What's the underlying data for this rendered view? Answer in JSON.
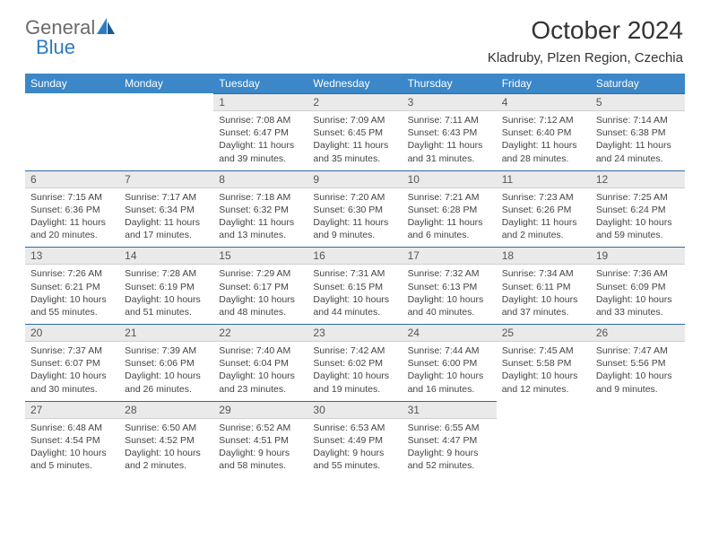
{
  "logo": {
    "part1": "General",
    "part2": "Blue"
  },
  "title": "October 2024",
  "subtitle": "Kladruby, Plzen Region, Czechia",
  "colors": {
    "header_bg": "#3b87c8",
    "header_text": "#ffffff",
    "daynum_bg": "#eaeaea",
    "border_top": "#2d6aa3",
    "logo_gray": "#6a6a6a",
    "logo_blue": "#2d7bc0"
  },
  "weekdays": [
    "Sunday",
    "Monday",
    "Tuesday",
    "Wednesday",
    "Thursday",
    "Friday",
    "Saturday"
  ],
  "weeks": [
    [
      null,
      null,
      {
        "num": "1",
        "sunrise": "Sunrise: 7:08 AM",
        "sunset": "Sunset: 6:47 PM",
        "daylight": "Daylight: 11 hours and 39 minutes."
      },
      {
        "num": "2",
        "sunrise": "Sunrise: 7:09 AM",
        "sunset": "Sunset: 6:45 PM",
        "daylight": "Daylight: 11 hours and 35 minutes."
      },
      {
        "num": "3",
        "sunrise": "Sunrise: 7:11 AM",
        "sunset": "Sunset: 6:43 PM",
        "daylight": "Daylight: 11 hours and 31 minutes."
      },
      {
        "num": "4",
        "sunrise": "Sunrise: 7:12 AM",
        "sunset": "Sunset: 6:40 PM",
        "daylight": "Daylight: 11 hours and 28 minutes."
      },
      {
        "num": "5",
        "sunrise": "Sunrise: 7:14 AM",
        "sunset": "Sunset: 6:38 PM",
        "daylight": "Daylight: 11 hours and 24 minutes."
      }
    ],
    [
      {
        "num": "6",
        "sunrise": "Sunrise: 7:15 AM",
        "sunset": "Sunset: 6:36 PM",
        "daylight": "Daylight: 11 hours and 20 minutes."
      },
      {
        "num": "7",
        "sunrise": "Sunrise: 7:17 AM",
        "sunset": "Sunset: 6:34 PM",
        "daylight": "Daylight: 11 hours and 17 minutes."
      },
      {
        "num": "8",
        "sunrise": "Sunrise: 7:18 AM",
        "sunset": "Sunset: 6:32 PM",
        "daylight": "Daylight: 11 hours and 13 minutes."
      },
      {
        "num": "9",
        "sunrise": "Sunrise: 7:20 AM",
        "sunset": "Sunset: 6:30 PM",
        "daylight": "Daylight: 11 hours and 9 minutes."
      },
      {
        "num": "10",
        "sunrise": "Sunrise: 7:21 AM",
        "sunset": "Sunset: 6:28 PM",
        "daylight": "Daylight: 11 hours and 6 minutes."
      },
      {
        "num": "11",
        "sunrise": "Sunrise: 7:23 AM",
        "sunset": "Sunset: 6:26 PM",
        "daylight": "Daylight: 11 hours and 2 minutes."
      },
      {
        "num": "12",
        "sunrise": "Sunrise: 7:25 AM",
        "sunset": "Sunset: 6:24 PM",
        "daylight": "Daylight: 10 hours and 59 minutes."
      }
    ],
    [
      {
        "num": "13",
        "sunrise": "Sunrise: 7:26 AM",
        "sunset": "Sunset: 6:21 PM",
        "daylight": "Daylight: 10 hours and 55 minutes."
      },
      {
        "num": "14",
        "sunrise": "Sunrise: 7:28 AM",
        "sunset": "Sunset: 6:19 PM",
        "daylight": "Daylight: 10 hours and 51 minutes."
      },
      {
        "num": "15",
        "sunrise": "Sunrise: 7:29 AM",
        "sunset": "Sunset: 6:17 PM",
        "daylight": "Daylight: 10 hours and 48 minutes."
      },
      {
        "num": "16",
        "sunrise": "Sunrise: 7:31 AM",
        "sunset": "Sunset: 6:15 PM",
        "daylight": "Daylight: 10 hours and 44 minutes."
      },
      {
        "num": "17",
        "sunrise": "Sunrise: 7:32 AM",
        "sunset": "Sunset: 6:13 PM",
        "daylight": "Daylight: 10 hours and 40 minutes."
      },
      {
        "num": "18",
        "sunrise": "Sunrise: 7:34 AM",
        "sunset": "Sunset: 6:11 PM",
        "daylight": "Daylight: 10 hours and 37 minutes."
      },
      {
        "num": "19",
        "sunrise": "Sunrise: 7:36 AM",
        "sunset": "Sunset: 6:09 PM",
        "daylight": "Daylight: 10 hours and 33 minutes."
      }
    ],
    [
      {
        "num": "20",
        "sunrise": "Sunrise: 7:37 AM",
        "sunset": "Sunset: 6:07 PM",
        "daylight": "Daylight: 10 hours and 30 minutes."
      },
      {
        "num": "21",
        "sunrise": "Sunrise: 7:39 AM",
        "sunset": "Sunset: 6:06 PM",
        "daylight": "Daylight: 10 hours and 26 minutes."
      },
      {
        "num": "22",
        "sunrise": "Sunrise: 7:40 AM",
        "sunset": "Sunset: 6:04 PM",
        "daylight": "Daylight: 10 hours and 23 minutes."
      },
      {
        "num": "23",
        "sunrise": "Sunrise: 7:42 AM",
        "sunset": "Sunset: 6:02 PM",
        "daylight": "Daylight: 10 hours and 19 minutes."
      },
      {
        "num": "24",
        "sunrise": "Sunrise: 7:44 AM",
        "sunset": "Sunset: 6:00 PM",
        "daylight": "Daylight: 10 hours and 16 minutes."
      },
      {
        "num": "25",
        "sunrise": "Sunrise: 7:45 AM",
        "sunset": "Sunset: 5:58 PM",
        "daylight": "Daylight: 10 hours and 12 minutes."
      },
      {
        "num": "26",
        "sunrise": "Sunrise: 7:47 AM",
        "sunset": "Sunset: 5:56 PM",
        "daylight": "Daylight: 10 hours and 9 minutes."
      }
    ],
    [
      {
        "num": "27",
        "sunrise": "Sunrise: 6:48 AM",
        "sunset": "Sunset: 4:54 PM",
        "daylight": "Daylight: 10 hours and 5 minutes."
      },
      {
        "num": "28",
        "sunrise": "Sunrise: 6:50 AM",
        "sunset": "Sunset: 4:52 PM",
        "daylight": "Daylight: 10 hours and 2 minutes."
      },
      {
        "num": "29",
        "sunrise": "Sunrise: 6:52 AM",
        "sunset": "Sunset: 4:51 PM",
        "daylight": "Daylight: 9 hours and 58 minutes."
      },
      {
        "num": "30",
        "sunrise": "Sunrise: 6:53 AM",
        "sunset": "Sunset: 4:49 PM",
        "daylight": "Daylight: 9 hours and 55 minutes."
      },
      {
        "num": "31",
        "sunrise": "Sunrise: 6:55 AM",
        "sunset": "Sunset: 4:47 PM",
        "daylight": "Daylight: 9 hours and 52 minutes."
      },
      null,
      null
    ]
  ]
}
